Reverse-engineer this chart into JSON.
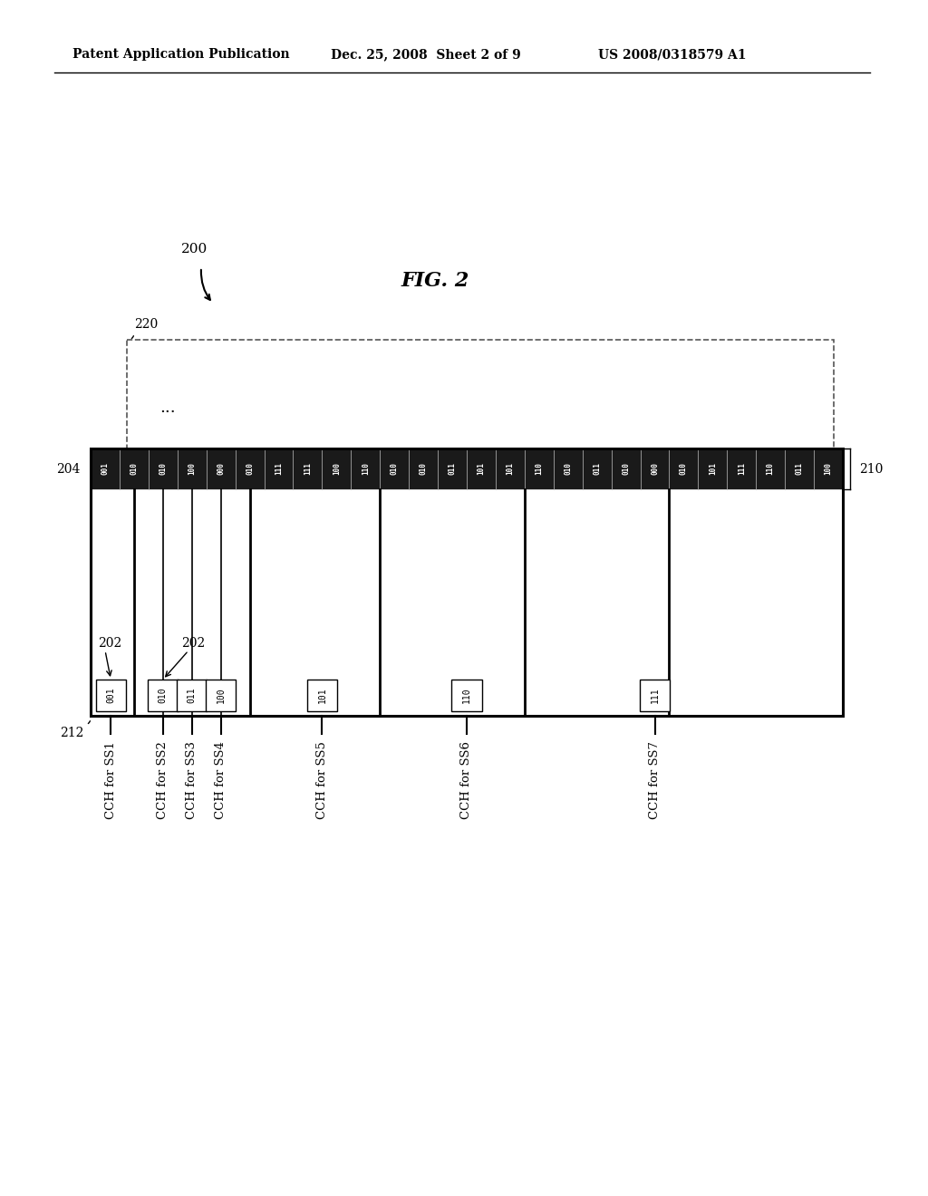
{
  "page_title_left": "Patent Application Publication",
  "page_title_center": "Dec. 25, 2008  Sheet 2 of 9",
  "page_title_right": "US 2008/0318579 A1",
  "fig_label": "FIG. 2",
  "arrow_label": "200",
  "label_204": "204",
  "label_220": "220",
  "label_210": "210",
  "label_202a": "202",
  "label_202b": "202",
  "label_212": "212",
  "top_row_codes": [
    "001",
    "010",
    "010",
    "100",
    "000",
    "010",
    "111",
    "111",
    "100",
    "110",
    "010",
    "010",
    "011",
    "101",
    "101",
    "110",
    "010",
    "011",
    "010",
    "000",
    "010",
    "101",
    "111",
    "110",
    "011",
    "100"
  ],
  "bg_color": "#ffffff",
  "top_bar_fill": "#1a1a1a",
  "top_bar_text_color": "#ffffff"
}
